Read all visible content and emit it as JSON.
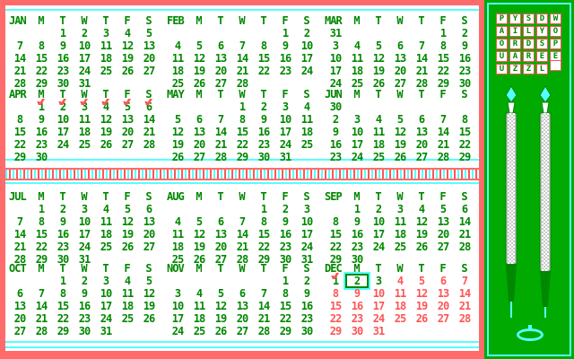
{
  "day_headers": [
    "S",
    "M",
    "T",
    "W",
    "T",
    "F",
    "S"
  ],
  "months": [
    {
      "name": "JAN",
      "weeks": [
        [
          "",
          "",
          "1",
          "2",
          "3",
          "4",
          "5"
        ],
        [
          "7",
          "8",
          "9",
          "10",
          "11",
          "12",
          "13"
        ],
        [
          "14",
          "15",
          "16",
          "17",
          "18",
          "19",
          "20"
        ],
        [
          "21",
          "22",
          "23",
          "24",
          "25",
          "26",
          "27"
        ],
        [
          "28",
          "29",
          "30",
          "31",
          "",
          "",
          ""
        ]
      ],
      "checks": []
    },
    {
      "name": "FEB",
      "weeks": [
        [
          "",
          "",
          "",
          "",
          "",
          "1",
          "2"
        ],
        [
          "4",
          "5",
          "6",
          "7",
          "8",
          "9",
          "10"
        ],
        [
          "11",
          "12",
          "13",
          "14",
          "15",
          "16",
          "17"
        ],
        [
          "18",
          "19",
          "20",
          "21",
          "22",
          "23",
          "24"
        ],
        [
          "25",
          "26",
          "27",
          "28",
          "",
          "",
          ""
        ]
      ],
      "checks": []
    },
    {
      "name": "MAR",
      "weeks": [
        [
          "31",
          "",
          "",
          "",
          "",
          "1",
          "2"
        ],
        [
          "3",
          "4",
          "5",
          "6",
          "7",
          "8",
          "9"
        ],
        [
          "10",
          "11",
          "12",
          "13",
          "14",
          "15",
          "16"
        ],
        [
          "17",
          "18",
          "19",
          "20",
          "21",
          "22",
          "23"
        ],
        [
          "24",
          "25",
          "26",
          "27",
          "28",
          "29",
          "30"
        ]
      ],
      "checks": []
    },
    {
      "name": "APR",
      "weeks": [
        [
          "",
          "1",
          "2",
          "3",
          "4",
          "5",
          "6"
        ],
        [
          "8",
          "9",
          "10",
          "11",
          "12",
          "13",
          "14"
        ],
        [
          "15",
          "16",
          "17",
          "18",
          "19",
          "20",
          "21"
        ],
        [
          "22",
          "23",
          "24",
          "25",
          "26",
          "27",
          "28"
        ],
        [
          "29",
          "30",
          "",
          "",
          "",
          "",
          ""
        ]
      ],
      "checks": [
        1,
        2,
        3,
        4,
        5,
        6
      ]
    },
    {
      "name": "MAY",
      "weeks": [
        [
          "",
          "",
          "",
          "1",
          "2",
          "3",
          "4"
        ],
        [
          "5",
          "6",
          "7",
          "8",
          "9",
          "10",
          "11"
        ],
        [
          "12",
          "13",
          "14",
          "15",
          "16",
          "17",
          "18"
        ],
        [
          "19",
          "20",
          "21",
          "22",
          "23",
          "24",
          "25"
        ],
        [
          "26",
          "27",
          "28",
          "29",
          "30",
          "31",
          ""
        ]
      ],
      "checks": []
    },
    {
      "name": "JUN",
      "weeks": [
        [
          "30",
          "",
          "",
          "",
          "",
          "",
          ""
        ],
        [
          "2",
          "3",
          "4",
          "5",
          "6",
          "7",
          "8"
        ],
        [
          "9",
          "10",
          "11",
          "12",
          "13",
          "14",
          "15"
        ],
        [
          "16",
          "17",
          "18",
          "19",
          "20",
          "21",
          "22"
        ],
        [
          "23",
          "24",
          "25",
          "26",
          "27",
          "28",
          "29"
        ]
      ],
      "checks": []
    },
    {
      "name": "JUL",
      "weeks": [
        [
          "",
          "1",
          "2",
          "3",
          "4",
          "5",
          "6"
        ],
        [
          "7",
          "8",
          "9",
          "10",
          "11",
          "12",
          "13"
        ],
        [
          "14",
          "15",
          "16",
          "17",
          "18",
          "19",
          "20"
        ],
        [
          "21",
          "22",
          "23",
          "24",
          "25",
          "26",
          "27"
        ],
        [
          "28",
          "29",
          "30",
          "31",
          "",
          "",
          ""
        ]
      ],
      "checks": []
    },
    {
      "name": "AUG",
      "weeks": [
        [
          "",
          "",
          "",
          "",
          "1",
          "2",
          "3"
        ],
        [
          "4",
          "5",
          "6",
          "7",
          "8",
          "9",
          "10"
        ],
        [
          "11",
          "12",
          "13",
          "14",
          "15",
          "16",
          "17"
        ],
        [
          "18",
          "19",
          "20",
          "21",
          "22",
          "23",
          "24"
        ],
        [
          "25",
          "26",
          "27",
          "28",
          "29",
          "30",
          "31"
        ]
      ],
      "checks": []
    },
    {
      "name": "SEP",
      "weeks": [
        [
          "",
          "1",
          "2",
          "3",
          "4",
          "5",
          "6"
        ],
        [
          "8",
          "9",
          "10",
          "11",
          "12",
          "13",
          "14"
        ],
        [
          "15",
          "16",
          "17",
          "18",
          "19",
          "20",
          "21"
        ],
        [
          "22",
          "23",
          "24",
          "25",
          "26",
          "27",
          "28"
        ],
        [
          "29",
          "30",
          "",
          "",
          "",
          "",
          ""
        ]
      ],
      "checks": []
    },
    {
      "name": "OCT",
      "weeks": [
        [
          "",
          "",
          "1",
          "2",
          "3",
          "4",
          "5"
        ],
        [
          "6",
          "7",
          "8",
          "9",
          "10",
          "11",
          "12"
        ],
        [
          "13",
          "14",
          "15",
          "16",
          "17",
          "18",
          "19"
        ],
        [
          "20",
          "21",
          "22",
          "23",
          "24",
          "25",
          "26"
        ],
        [
          "27",
          "28",
          "29",
          "30",
          "31",
          "",
          ""
        ]
      ],
      "checks": []
    },
    {
      "name": "NOV",
      "weeks": [
        [
          "",
          "",
          "",
          "",
          "",
          "1",
          "2"
        ],
        [
          "3",
          "4",
          "5",
          "6",
          "7",
          "8",
          "9"
        ],
        [
          "10",
          "11",
          "12",
          "13",
          "14",
          "15",
          "16"
        ],
        [
          "17",
          "18",
          "19",
          "20",
          "21",
          "22",
          "23"
        ],
        [
          "24",
          "25",
          "26",
          "27",
          "28",
          "29",
          "30"
        ]
      ],
      "checks": []
    },
    {
      "name": "DEC",
      "weeks": [
        [
          "1",
          "2",
          "3",
          "4",
          "5",
          "6",
          "7"
        ],
        [
          "8",
          "9",
          "10",
          "11",
          "12",
          "13",
          "14"
        ],
        [
          "15",
          "16",
          "17",
          "18",
          "19",
          "20",
          "21"
        ],
        [
          "22",
          "23",
          "24",
          "25",
          "26",
          "27",
          "28"
        ],
        [
          "29",
          "30",
          "31",
          "",
          "",
          "",
          ""
        ]
      ],
      "checks": [
        0
      ],
      "selected_day": "2",
      "red_from_day": 3
    }
  ],
  "logo": {
    "rows": [
      [
        "P",
        "Y",
        "S",
        "D"
      ],
      [
        "A",
        "I",
        "L",
        "Y"
      ],
      [
        "O",
        "R",
        "D",
        "S"
      ],
      [
        "U",
        "A",
        "R",
        "E"
      ],
      [
        "U",
        "Z",
        "Z",
        "L"
      ]
    ],
    "extras": [
      "W",
      "O",
      "P",
      "E"
    ]
  },
  "colors": {
    "frame": "#ff6b6b",
    "panel": "#ffffff",
    "digits": "#008800",
    "red": "#ff5555",
    "cyan": "#55ffff",
    "side": "#00aa00"
  },
  "icons": {
    "pen_left": "pencil-icon",
    "pen_right": "pencil-icon",
    "ring": "ring-icon"
  }
}
